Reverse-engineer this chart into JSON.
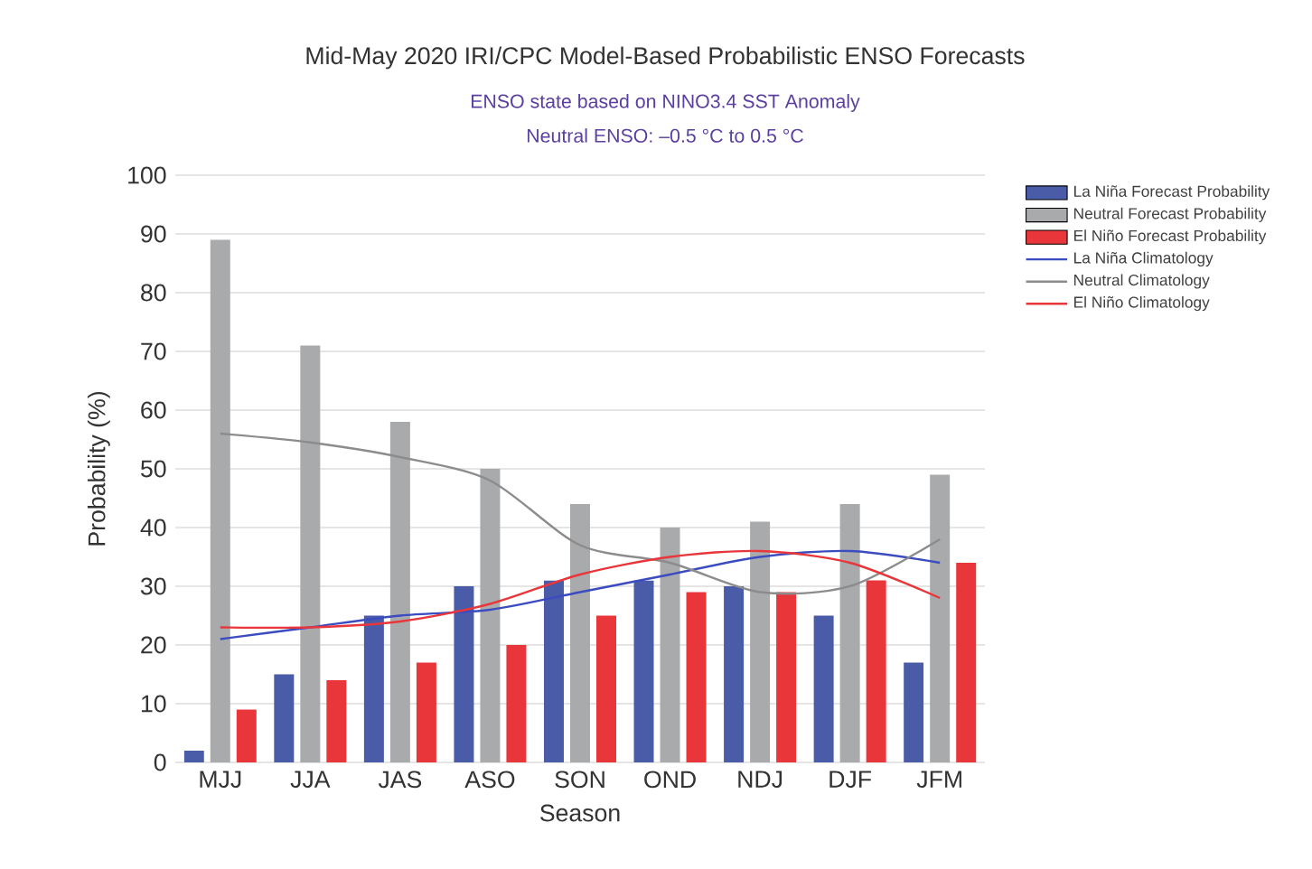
{
  "chart_data": {
    "type": "bar",
    "title": "Mid-May 2020 IRI/CPC Model-Based Probabilistic ENSO Forecasts",
    "subtitle": "ENSO state based on NINO3.4 SST Anomaly",
    "annotations": [
      "Neutral ENSO: –0.5 °C to 0.5 °C"
    ],
    "xlabel": "Season",
    "ylabel": "Probability (%)",
    "categories": [
      "MJJ",
      "JJA",
      "JAS",
      "ASO",
      "SON",
      "OND",
      "NDJ",
      "DJF",
      "JFM"
    ],
    "series": [
      {
        "name": "La Niña Forecast Probability",
        "color": "#4a5ba8",
        "values": [
          2,
          15,
          25,
          30,
          31,
          31,
          30,
          25,
          17
        ]
      },
      {
        "name": "Neutral Forecast Probability",
        "color": "#a9aaac",
        "values": [
          89,
          71,
          58,
          50,
          44,
          40,
          41,
          44,
          49
        ]
      },
      {
        "name": "El Niño Forecast Probability",
        "color": "#e8363a",
        "values": [
          9,
          14,
          17,
          20,
          25,
          29,
          29,
          31,
          34
        ]
      },
      {
        "name": "La Niña Climatology",
        "type": "line",
        "color": "#3b4cc0",
        "values": [
          21,
          23,
          25,
          26,
          29,
          32,
          35,
          36,
          34
        ]
      },
      {
        "name": "Neutral Climatology",
        "type": "line",
        "color": "#8c8c8c",
        "values": [
          56,
          54.5,
          52,
          48,
          37,
          34,
          29,
          30,
          38
        ]
      },
      {
        "name": "El Niño Climatology",
        "type": "line",
        "color": "#e8363a",
        "values": [
          23,
          23,
          24,
          27,
          32,
          35,
          36,
          34,
          28
        ]
      }
    ],
    "ylim": [
      0,
      100
    ],
    "yticks": [
      0,
      10,
      20,
      30,
      40,
      50,
      60,
      70,
      80,
      90,
      100
    ],
    "grid": "y",
    "legend": "top right"
  }
}
